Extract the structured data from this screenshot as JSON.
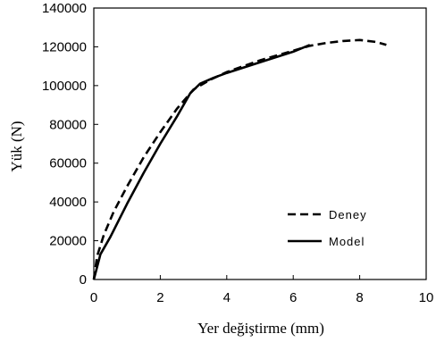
{
  "chart_data": {
    "type": "line",
    "title": "",
    "xlabel": "Yer değiştirme  (mm)",
    "ylabel": "Yük  (N)",
    "xlim": [
      0,
      10
    ],
    "ylim": [
      0,
      140000
    ],
    "x_ticks": [
      "0",
      "2",
      "4",
      "6",
      "8",
      "10"
    ],
    "y_ticks": [
      "0",
      "20000",
      "40000",
      "60000",
      "80000",
      "100000",
      "120000",
      "140000"
    ],
    "grid": false,
    "legend_position": "bottom-right",
    "series": [
      {
        "name": "Deney",
        "style": "dashed",
        "color": "#000000",
        "points": [
          [
            0,
            0
          ],
          [
            0.1,
            12000
          ],
          [
            0.3,
            23000
          ],
          [
            0.6,
            35000
          ],
          [
            1.0,
            48000
          ],
          [
            1.5,
            63000
          ],
          [
            2.0,
            76000
          ],
          [
            2.5,
            88000
          ],
          [
            3.0,
            98000
          ],
          [
            3.5,
            103000
          ],
          [
            4.0,
            107000
          ],
          [
            5.0,
            113000
          ],
          [
            6.0,
            118000
          ],
          [
            6.5,
            120500
          ],
          [
            7.0,
            122000
          ],
          [
            7.5,
            123000
          ],
          [
            8.0,
            123500
          ],
          [
            8.5,
            122500
          ],
          [
            8.8,
            121000
          ]
        ]
      },
      {
        "name": "Model",
        "style": "solid",
        "color": "#000000",
        "points": [
          [
            0,
            0
          ],
          [
            0.2,
            13000
          ],
          [
            0.5,
            22000
          ],
          [
            1.0,
            39000
          ],
          [
            1.5,
            55000
          ],
          [
            2.0,
            70000
          ],
          [
            2.5,
            84000
          ],
          [
            2.9,
            96000
          ],
          [
            3.2,
            101000
          ],
          [
            3.6,
            104000
          ],
          [
            4.0,
            106500
          ],
          [
            5.0,
            112000
          ],
          [
            6.0,
            117500
          ],
          [
            6.5,
            121000
          ]
        ]
      }
    ]
  }
}
